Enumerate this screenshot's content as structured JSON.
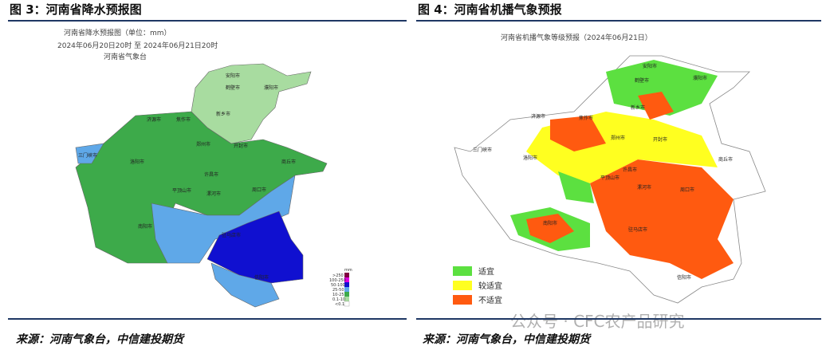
{
  "figures": [
    {
      "title": "图 3：河南省降水预报图",
      "map_title": "河南省降水预报图（单位：mm）",
      "map_subtitle": "2024年06月20日20时 至 2024年06月21日20时",
      "map_issuer": "河南省气象台",
      "cities": [
        "安阳市",
        "鹤壁市",
        "濮阳市",
        "新乡市",
        "焦作市",
        "济源市",
        "郑州市",
        "开封市",
        "商丘市",
        "三门峡市",
        "洛阳市",
        "平顶山市",
        "许昌市",
        "漯河市",
        "周口市",
        "南阳市",
        "驻马店市",
        "信阳市"
      ],
      "legend_unit": "mm",
      "legend": [
        ">250",
        "100-250",
        "50-100",
        "25-50",
        "10-25",
        "0.1-10",
        "<0.1"
      ],
      "source": "来源：河南气象台，中信建投期货"
    },
    {
      "title": "图 4：河南省机播气象预报",
      "map_title": "河南省机播气象等级预报（2024年06月21日）",
      "cities": [
        "安阳市",
        "鹤壁市",
        "濮阳市",
        "新乡市",
        "焦作市",
        "济源市",
        "郑州市",
        "开封市",
        "商丘市",
        "三门峡市",
        "洛阳市",
        "平顶山市",
        "许昌市",
        "漯河市",
        "周口市",
        "南阳市",
        "驻马店市",
        "信阳市"
      ],
      "legend": [
        "适宜",
        "较适宜",
        "不适宜"
      ],
      "source": "来源：河南气象台，中信建投期货"
    }
  ],
  "watermark": "公众号 · CFC农产品研究"
}
